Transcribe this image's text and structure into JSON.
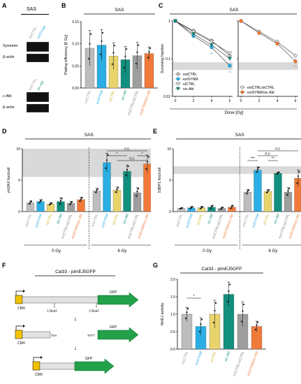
{
  "colors": {
    "esiCTRL": "#bdbdbd",
    "esiSYNM": "#2aaee4",
    "siCTRL": "#e8d46b",
    "sicAbl": "#128f7e",
    "esiCTRL_siCTRL": "#9e9e9e",
    "esiSYNM_sicAbl": "#f07a3a",
    "pval": "#3aa0d8",
    "pval2": "#f07a3a",
    "shade": "#d9d9d9",
    "gfp": "#22a04a",
    "cmv": "#f2c200"
  },
  "panels": {
    "A": {
      "letter": "A",
      "cell_line": "SAS",
      "blot1": {
        "lanes": [
          "esiCTRL",
          "esiSYNM"
        ],
        "rows": [
          "Synemin",
          "β-actin"
        ]
      },
      "blot2": {
        "lanes": [
          "esiCTRL",
          "sic-Abl"
        ],
        "rows": [
          "c-Abl",
          "β-actin"
        ]
      }
    },
    "B": {
      "letter": "B"
    },
    "C": {
      "letter": "C"
    },
    "D": {
      "letter": "D"
    },
    "E": {
      "letter": "E"
    },
    "F": {
      "letter": "F",
      "title": "Cal33 - pimEJ5GFP",
      "labels": {
        "cmv": "CMV",
        "isce1": "I-SceI",
        "isce2": "I-SceI",
        "gfp": "GFP",
        "taa": "TAA",
        "tatt": "TATT"
      }
    },
    "G": {
      "letter": "G"
    }
  },
  "chart_data": [
    {
      "id": "B",
      "type": "bar",
      "title": "SAS",
      "ylabel": "Plating efficiency [0 Gy]",
      "ylim": [
        0,
        0.15
      ],
      "yticks": [
        "0.00",
        "0.05",
        "0.10",
        "0.15"
      ],
      "categories": [
        "esiCTRL",
        "esiSYNM",
        "siCTRL",
        "sic-Abl",
        "esiCTRL/siCTRL",
        "esiSYNM/sic-Abl"
      ],
      "values": [
        0.09,
        0.097,
        0.072,
        0.064,
        0.073,
        0.078
      ],
      "errors": [
        0.04,
        0.035,
        0.03,
        0.03,
        0.03,
        0.015
      ]
    },
    {
      "id": "C",
      "type": "line",
      "title": "SAS",
      "xlabel": "Dose [Gy]",
      "ylabel": "Surviving fraction",
      "yscale": "log",
      "ylim": [
        0.01,
        1
      ],
      "yticks": [
        "0.01",
        "0.1",
        "1"
      ],
      "xticks": [
        "0",
        "2",
        "4",
        "6"
      ],
      "subplots": [
        {
          "series": [
            {
              "name": "esiCTRL",
              "x": [
                0,
                2,
                4,
                6
              ],
              "y": [
                1,
                0.55,
                0.3,
                0.12
              ]
            },
            {
              "name": "esiSYNM",
              "x": [
                0,
                2,
                4,
                6
              ],
              "y": [
                1,
                0.4,
                0.2,
                0.065
              ]
            },
            {
              "name": "siCTRL",
              "x": [
                0,
                2,
                4,
                6
              ],
              "y": [
                1,
                0.52,
                0.28,
                0.14
              ]
            },
            {
              "name": "sic-Abl",
              "x": [
                0,
                2,
                4,
                6
              ],
              "y": [
                1,
                0.45,
                0.23,
                0.1
              ]
            }
          ],
          "annotations": [
            "**",
            "**"
          ]
        },
        {
          "series": [
            {
              "name": "esiCTRL/siCTRL",
              "x": [
                0,
                2,
                4,
                6
              ],
              "y": [
                1,
                0.52,
                0.28,
                0.12
              ]
            },
            {
              "name": "esiSYNM/sic-Abl",
              "x": [
                0,
                2,
                4,
                6
              ],
              "y": [
                1,
                0.48,
                0.25,
                0.085
              ]
            }
          ],
          "annotations": [
            "**"
          ]
        }
      ]
    },
    {
      "id": "D",
      "type": "bar",
      "title": "SAS",
      "ylabel": "γH2AX foci/cell",
      "ylim": [
        0,
        10
      ],
      "yticks": [
        "0",
        "5",
        "10"
      ],
      "groups": [
        "0 Gy",
        "6 Gy"
      ],
      "categories": [
        "esiCTRL",
        "esiSYNM",
        "siCTRL",
        "sic-Abl",
        "esiCTRL/siCTRL",
        "esiSYNM/sic-Abl",
        "esiCTRL",
        "esiSYNM",
        "siCTRL",
        "sic-Abl",
        "esiCTRL/siCTRL",
        "esiSYNM/sic-Abl"
      ],
      "values": [
        1.4,
        1.6,
        1.2,
        1.6,
        1.3,
        1.9,
        3.3,
        7.8,
        3.4,
        6.4,
        3.0,
        7.6
      ],
      "errors": [
        0.3,
        0.3,
        0.2,
        0.6,
        0.3,
        0.4,
        0.4,
        1.5,
        0.5,
        1.0,
        0.8,
        1.4
      ],
      "annotations": [
        "n.s.",
        "*",
        "n.s.",
        "*"
      ]
    },
    {
      "id": "E",
      "type": "bar",
      "title": "SAS",
      "ylabel": "53BP1 foci/cell",
      "ylim": [
        0,
        10
      ],
      "yticks": [
        "0",
        "5",
        "10"
      ],
      "groups": [
        "0 Gy",
        "6 Gy"
      ],
      "categories": [
        "esiCTRL",
        "esiSYNM",
        "siCTRL",
        "sic-Abl",
        "esiCTRL/siCTRL",
        "esiSYNM/sic-Abl",
        "esiCTRL",
        "esiSYNM",
        "siCTRL",
        "sic-Abl",
        "esiCTRL/siCTRL",
        "esiSYNM/sic-Abl"
      ],
      "values": [
        0.5,
        0.6,
        0.6,
        0.7,
        0.5,
        0.7,
        3.1,
        6.6,
        3.2,
        6.1,
        3.1,
        5.3
      ],
      "errors": [
        0.1,
        0.2,
        0.2,
        0.3,
        0.2,
        0.3,
        0.4,
        0.5,
        0.3,
        0.2,
        0.7,
        1.3
      ],
      "annotations": [
        "***",
        "n.s.",
        "**",
        "n.s."
      ]
    },
    {
      "id": "G",
      "type": "bar",
      "title": "Cal33 - pimEJ5GFP",
      "ylabel": "NHEJ activity",
      "ylim": [
        0,
        2.0
      ],
      "yticks": [
        "0.0",
        "0.5",
        "1.0",
        "1.5",
        "2.0"
      ],
      "categories": [
        "esiCTRL",
        "esiSYNM",
        "siCTRL",
        "sic-Abl",
        "esiCTRL/siCTRL",
        "esiSYNM/sic-Abl"
      ],
      "values": [
        1.0,
        0.65,
        1.0,
        1.57,
        1.0,
        0.65
      ],
      "errors": [
        0.2,
        0.25,
        0.4,
        0.35,
        0.35,
        0.15
      ],
      "annotations": [
        "*"
      ]
    }
  ]
}
